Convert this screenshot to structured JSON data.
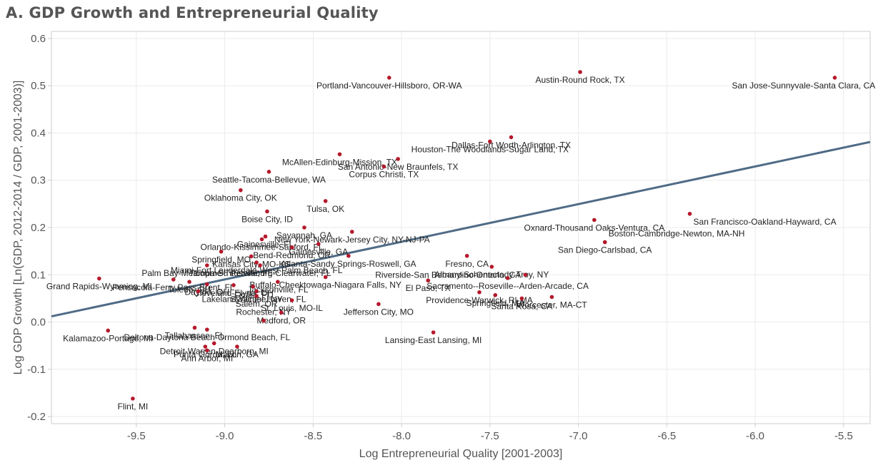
{
  "chart_data": {
    "type": "scatter",
    "title": "A. GDP Growth and Entrepreneurial Quality",
    "xlabel": "Log Entrepreneurial Quality [2001-2003]",
    "ylabel": "Log GDP Growth [Ln(GDP, 2012-2014 / GDP, 2001-2003)]",
    "xlim": [
      -9.98,
      -5.35
    ],
    "ylim": [
      -0.215,
      0.615
    ],
    "xticks": [
      "-9.5",
      "-9.0",
      "-8.5",
      "-8.0",
      "-7.5",
      "-7.0",
      "-6.5",
      "-6.0",
      "-5.5"
    ],
    "yticks": [
      "0.6",
      "0.5",
      "0.4",
      "0.3",
      "0.2",
      "0.1",
      "0.0",
      "-0.1",
      "-0.2"
    ],
    "grid": true,
    "colors": {
      "point": "#b5192b",
      "fit_line": "#4f6b86",
      "grid": "#ebebeb",
      "axis": "#cccccc"
    },
    "fit_line": {
      "x": [
        -9.98,
        -5.35
      ],
      "y": [
        0.012,
        0.381
      ]
    },
    "points": [
      {
        "x": -8.07,
        "y": 0.517,
        "label": "Portland-Vancouver-Hillsboro, OR-WA",
        "pos": "below"
      },
      {
        "x": -6.99,
        "y": 0.529,
        "label": "Austin-Round Rock, TX",
        "pos": "below"
      },
      {
        "x": -5.55,
        "y": 0.517,
        "label": "San Jose-Sunnyvale-Santa Clara, CA",
        "pos": "below"
      },
      {
        "x": -7.38,
        "y": 0.391,
        "label": "Dallas-Fort Worth-Arlington, TX",
        "pos": "below"
      },
      {
        "x": -7.5,
        "y": 0.382,
        "label": "Houston-The Woodlands-Sugar Land, TX",
        "pos": "below"
      },
      {
        "x": -8.35,
        "y": 0.355,
        "label": "McAllen-Edinburg-Mission, TX",
        "pos": "below"
      },
      {
        "x": -8.02,
        "y": 0.345,
        "label": "San Antonio-New Braunfels, TX",
        "pos": "below"
      },
      {
        "x": -8.1,
        "y": 0.329,
        "label": "Corpus Christi, TX",
        "pos": "below"
      },
      {
        "x": -8.75,
        "y": 0.318,
        "label": "Seattle-Tacoma-Bellevue, WA",
        "pos": "below"
      },
      {
        "x": -8.91,
        "y": 0.279,
        "label": "Oklahoma City, OK",
        "pos": "below"
      },
      {
        "x": -8.43,
        "y": 0.256,
        "label": "Tulsa, OK",
        "pos": "below"
      },
      {
        "x": -8.76,
        "y": 0.234,
        "label": "Boise City, ID",
        "pos": "below"
      },
      {
        "x": -6.37,
        "y": 0.229,
        "label": "San Francisco-Oakland-Hayward, CA",
        "pos": "below-right"
      },
      {
        "x": -6.91,
        "y": 0.216,
        "label": "Oxnard-Thousand Oaks-Ventura, CA",
        "pos": "below"
      },
      {
        "x": -6.85,
        "y": 0.169,
        "label": "Boston-Cambridge-Newton, MA-NH",
        "pos": "above-right"
      },
      {
        "x": -6.85,
        "y": 0.169,
        "label": "San Diego-Carlsbad, CA",
        "pos": "below"
      },
      {
        "x": -8.55,
        "y": 0.2,
        "label": "Savannah, GA",
        "pos": "below"
      },
      {
        "x": -8.28,
        "y": 0.191,
        "label": "New York-Newark-Jersey City, NY-NJ-PA",
        "pos": "below"
      },
      {
        "x": -8.77,
        "y": 0.181,
        "label": "Gainesville, FL",
        "pos": "below"
      },
      {
        "x": -8.79,
        "y": 0.175,
        "label": "Orlando-Kissimmee-Sanford, FL",
        "pos": "below"
      },
      {
        "x": -8.47,
        "y": 0.165,
        "label": "Gainesville, GA",
        "pos": "below"
      },
      {
        "x": -8.62,
        "y": 0.158,
        "label": "Bend-Redmond, OR",
        "pos": "below"
      },
      {
        "x": -9.02,
        "y": 0.149,
        "label": "Springfield, MO",
        "pos": "below"
      },
      {
        "x": -8.85,
        "y": 0.139,
        "label": "Kansas City, MO-KS",
        "pos": "below"
      },
      {
        "x": -8.3,
        "y": 0.14,
        "label": "Atlanta-Sandy Springs-Roswell, GA",
        "pos": "below"
      },
      {
        "x": -7.63,
        "y": 0.14,
        "label": "Fresno, CA",
        "pos": "below"
      },
      {
        "x": -8.82,
        "y": 0.126,
        "label": "Miami-Fort Lauderdale-West Palm Beach, FL",
        "pos": "below"
      },
      {
        "x": -9.1,
        "y": 0.12,
        "label": "Palm Bay-Melbourne-Titusville, FL",
        "pos": "below"
      },
      {
        "x": -7.49,
        "y": 0.117,
        "label": "Albany-Schenectady-Troy, NY",
        "pos": "below"
      },
      {
        "x": -7.3,
        "y": 0.1,
        "label": "Riverside-San Bernardino-Ontario, CA",
        "pos": "left"
      },
      {
        "x": -8.8,
        "y": 0.12,
        "label": "Tampa-St. Petersburg-Clearwater, FL",
        "pos": "below"
      },
      {
        "x": -9.71,
        "y": 0.092,
        "label": "Grand Rapids-Wyoming, MI",
        "pos": "below"
      },
      {
        "x": -9.29,
        "y": 0.09,
        "label": "Pensacola-Ferry Pass-Brent, FL",
        "pos": "below"
      },
      {
        "x": -8.43,
        "y": 0.095,
        "label": "Buffalo-Cheektowaga-Niagara Falls, NY",
        "pos": "below"
      },
      {
        "x": -7.85,
        "y": 0.088,
        "label": "El Paso, TX",
        "pos": "below"
      },
      {
        "x": -7.4,
        "y": 0.093,
        "label": "Sacramento--Roseville--Arden-Arcade, CA",
        "pos": "below"
      },
      {
        "x": -9.2,
        "y": 0.085,
        "label": "Toledo, OH",
        "pos": "below"
      },
      {
        "x": -8.7,
        "y": 0.085,
        "label": "Jacksonville, FL",
        "pos": "below"
      },
      {
        "x": -9.1,
        "y": 0.08,
        "label": "Dayton, OH",
        "pos": "below"
      },
      {
        "x": -8.95,
        "y": 0.078,
        "label": "Cleveland-Elyria, OH",
        "pos": "below"
      },
      {
        "x": -8.84,
        "y": 0.075,
        "label": "Ocala, FL",
        "pos": "below"
      },
      {
        "x": -9.15,
        "y": 0.065,
        "label": "Lakeland-Winter Haven, FL",
        "pos": "below-right"
      },
      {
        "x": -8.82,
        "y": 0.065,
        "label": "Syracuse, NY",
        "pos": "below"
      },
      {
        "x": -7.56,
        "y": 0.063,
        "label": "Providence-Warwick, RI-MA",
        "pos": "below"
      },
      {
        "x": -7.47,
        "y": 0.057,
        "label": "Springfield, MA",
        "pos": "below"
      },
      {
        "x": -7.32,
        "y": 0.05,
        "label": "Santa Rosa, CA",
        "pos": "below"
      },
      {
        "x": -7.15,
        "y": 0.053,
        "label": "Worcester, MA-CT",
        "pos": "below"
      },
      {
        "x": -8.82,
        "y": 0.055,
        "label": "Salem, OR",
        "pos": "below"
      },
      {
        "x": -8.62,
        "y": 0.046,
        "label": "St. Louis, MO-IL",
        "pos": "below"
      },
      {
        "x": -8.13,
        "y": 0.038,
        "label": "Jefferson City, MO",
        "pos": "below"
      },
      {
        "x": -8.68,
        "y": 0.02,
        "label": "Medford, OR",
        "pos": "below"
      },
      {
        "x": -8.78,
        "y": 0.003,
        "label": "Rochester, NY",
        "pos": "above"
      },
      {
        "x": -9.66,
        "y": -0.018,
        "label": "Kalamazoo-Portage, MI",
        "pos": "below"
      },
      {
        "x": -9.17,
        "y": -0.012,
        "label": "Tallahassee, FL",
        "pos": "below"
      },
      {
        "x": -9.1,
        "y": -0.016,
        "label": "Deltona-Daytona Beach-Ormond Beach, FL",
        "pos": "below"
      },
      {
        "x": -7.82,
        "y": -0.022,
        "label": "Lansing-East Lansing, MI",
        "pos": "below"
      },
      {
        "x": -9.06,
        "y": -0.045,
        "label": "Detroit-Warren-Dearborn, MI",
        "pos": "below"
      },
      {
        "x": -9.11,
        "y": -0.052,
        "label": "Punta Gorda, FL",
        "pos": "below"
      },
      {
        "x": -8.93,
        "y": -0.052,
        "label": "Macon, GA",
        "pos": "below"
      },
      {
        "x": -9.1,
        "y": -0.06,
        "label": "Ann Arbor, MI",
        "pos": "below"
      },
      {
        "x": -9.52,
        "y": -0.162,
        "label": "Flint, MI",
        "pos": "below"
      }
    ]
  }
}
